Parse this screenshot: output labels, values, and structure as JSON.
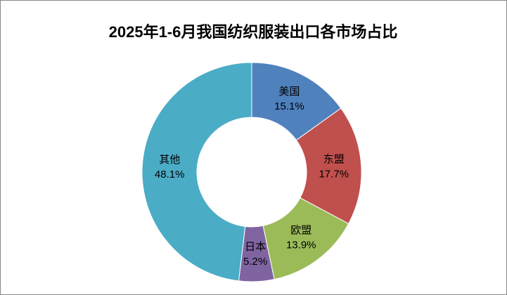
{
  "chart_data": {
    "type": "donut",
    "title": "2025年1-6月我国纺织服装出口各市场占比",
    "categories": [
      "美国",
      "东盟",
      "欧盟",
      "日本",
      "其他"
    ],
    "values": [
      15.1,
      17.7,
      13.9,
      5.2,
      48.1
    ],
    "value_labels": [
      "15.1%",
      "17.7%",
      "13.9%",
      "5.2%",
      "48.1%"
    ],
    "colors": [
      "#4f81bd",
      "#c0504d",
      "#9bbb59",
      "#8064a2",
      "#4bacc6"
    ]
  }
}
